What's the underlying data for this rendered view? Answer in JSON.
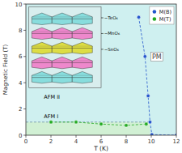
{
  "chart_data": {
    "type": "line",
    "color": "#cff0f0",
    "xlabel": "T (K)",
    "ylabel": "Magnetic Field (T)",
    "xlim": [
      0,
      12
    ],
    "ylim": [
      0,
      10
    ],
    "xticks": [
      0,
      2,
      4,
      6,
      8,
      10,
      12
    ],
    "yticks": [
      0,
      2,
      4,
      6,
      8,
      10
    ],
    "grid": false,
    "legend": "upper right",
    "series": [
      {
        "type": "area",
        "color": "#d0f0d0",
        "line_style": "dashed",
        "x": [
          0,
          9.9
        ],
        "values": [
          1.0,
          1.0
        ]
      },
      {
        "name": "M(B)",
        "type": "line",
        "color": "#2255cc",
        "marker": "circle",
        "line_style": "dashed",
        "x": [
          9.0,
          9.5,
          9.75,
          9.9,
          10.05,
          12.0
        ],
        "values": [
          9.0,
          6.0,
          3.0,
          1.0,
          0.05,
          0.0
        ]
      },
      {
        "name": "M(T)",
        "type": "line",
        "color": "#22aa22",
        "marker": "circle",
        "line_style": "dashed",
        "x": [
          2.0,
          4.0,
          6.0,
          8.0,
          9.6
        ],
        "values": [
          1.0,
          1.0,
          0.85,
          0.75,
          0.85
        ],
        "errors": [
          0.08,
          0.07,
          0.07,
          0.07,
          0.08
        ]
      }
    ],
    "annotations": [
      "AFM I",
      "AFM II",
      "PM",
      "−TeO₆",
      "−MnO₆",
      "−SnO₆"
    ]
  }
}
